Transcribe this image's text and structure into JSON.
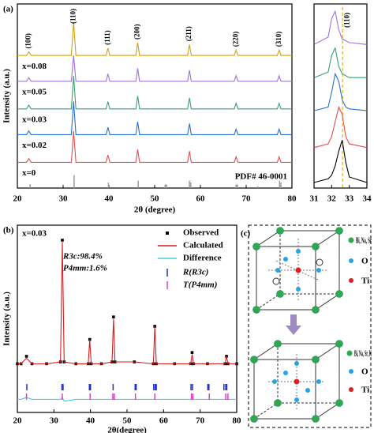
{
  "chart_data": [
    {
      "type": "line",
      "panel_label": "(a)",
      "xlabel": "2θ (degree)",
      "ylabel": "Intensity (a.u.)",
      "xlim": [
        20,
        80
      ],
      "ylim": [
        0,
        100
      ],
      "xticks": [
        20,
        30,
        40,
        50,
        60,
        70,
        80
      ],
      "x": [
        20,
        22,
        22.5,
        23,
        31.8,
        32.3,
        32.8,
        39.4,
        39.8,
        40.2,
        45.9,
        46.3,
        46.7,
        57.2,
        57.6,
        58.0,
        67.4,
        67.8,
        68.2,
        76.8,
        77.2,
        77.6,
        80
      ],
      "series": [
        {
          "name": "x=0",
          "color": "#e05050",
          "values": [
            14,
            14,
            16,
            14,
            14,
            31,
            14,
            14,
            18,
            14,
            14,
            21,
            14,
            14,
            20,
            14,
            14,
            17,
            14,
            14,
            17,
            14,
            14
          ]
        },
        {
          "name": "x=0.02",
          "color": "#2a6fd0",
          "values": [
            29,
            29,
            31,
            29,
            29,
            47,
            29,
            29,
            33,
            29,
            29,
            36,
            29,
            29,
            35,
            29,
            29,
            32,
            29,
            29,
            32,
            29,
            29
          ]
        },
        {
          "name": "x=0.03",
          "color": "#3aa070",
          "values": [
            43,
            43,
            45,
            43,
            43,
            61,
            43,
            43,
            47,
            43,
            43,
            50,
            43,
            43,
            49,
            43,
            43,
            46,
            43,
            43,
            46,
            43,
            43
          ]
        },
        {
          "name": "x=0.05",
          "color": "#a070e0",
          "values": [
            58,
            58,
            60,
            58,
            58,
            72,
            58,
            58,
            62,
            58,
            58,
            65,
            58,
            58,
            64,
            58,
            58,
            61,
            58,
            58,
            61,
            58,
            58
          ]
        },
        {
          "name": "x=0.08",
          "color": "#d4a017",
          "values": [
            72,
            72,
            74,
            72,
            72,
            90,
            72,
            72,
            76,
            72,
            72,
            79,
            72,
            72,
            78,
            72,
            72,
            75,
            72,
            72,
            75,
            72,
            72
          ]
        }
      ],
      "reference": {
        "name": "PDF# 46-0001",
        "color": "#999999",
        "x": [
          22.8,
          32.4,
          39.9,
          46.4,
          52.3,
          52.6,
          57.6,
          57.9,
          67.8,
          68.1,
          72.5,
          77.3,
          77.6
        ],
        "values": [
          2,
          7,
          3,
          4,
          2,
          2,
          4,
          3,
          2,
          2,
          1,
          4,
          3
        ]
      },
      "peak_labels": [
        {
          "text": "(100)",
          "x": 22.5
        },
        {
          "text": "(110)",
          "x": 32.3
        },
        {
          "text": "(111)",
          "x": 39.8
        },
        {
          "text": "(200)",
          "x": 46.3
        },
        {
          "text": "(211)",
          "x": 57.6
        },
        {
          "text": "(220)",
          "x": 67.8
        },
        {
          "text": "(310)",
          "x": 77.2
        }
      ]
    },
    {
      "type": "line",
      "xlim": [
        31,
        34
      ],
      "ylim": [
        0,
        100
      ],
      "xticks": [
        31,
        32,
        33,
        34
      ],
      "x": [
        31,
        31.8,
        32.0,
        32.2,
        32.4,
        32.6,
        32.8,
        33.0,
        34
      ],
      "series": [
        {
          "color": "#000000",
          "values": [
            3,
            5,
            7,
            12,
            20,
            26,
            14,
            6,
            3
          ]
        },
        {
          "color": "#e05050",
          "values": [
            22,
            24,
            28,
            36,
            44,
            40,
            28,
            24,
            22
          ]
        },
        {
          "color": "#2a6fd0",
          "values": [
            42,
            44,
            52,
            62,
            58,
            48,
            44,
            43,
            42
          ]
        },
        {
          "color": "#3aa070",
          "values": [
            60,
            63,
            72,
            76,
            66,
            62,
            61,
            60,
            60
          ]
        },
        {
          "color": "#a070e0",
          "values": [
            78,
            82,
            92,
            96,
            86,
            81,
            80,
            79,
            78
          ]
        }
      ],
      "marker_x": 32.62,
      "marker_color": "#e0b020",
      "annotation": {
        "text": "(110)",
        "x": 32.9
      }
    },
    {
      "type": "line",
      "panel_label": "(b)",
      "xlabel": "2θ(degree)",
      "ylabel": "Intensity (a.u.)",
      "xlim": [
        20,
        80
      ],
      "ylim": [
        0,
        100
      ],
      "xticks": [
        20,
        30,
        40,
        50,
        60,
        70,
        80
      ],
      "x": [
        20,
        21,
        22.5,
        24,
        28,
        31.8,
        32.3,
        32.8,
        36,
        39.4,
        39.8,
        40.2,
        43,
        45.9,
        46.3,
        46.7,
        52,
        57.2,
        57.6,
        58.0,
        63,
        67.4,
        67.8,
        68.2,
        72,
        76.8,
        77.2,
        77.6,
        80
      ],
      "series": [
        {
          "name": "Observed",
          "color": "#000000",
          "style": "points",
          "values": [
            26,
            26,
            30,
            26,
            26,
            27,
            92,
            27,
            26,
            26,
            39,
            26,
            26,
            27,
            51,
            27,
            27,
            26,
            46,
            26,
            26,
            26,
            32,
            26,
            26,
            26,
            30,
            26,
            26
          ]
        },
        {
          "name": "Calculated",
          "color": "#d02020",
          "style": "line",
          "values": [
            26,
            26,
            29,
            26,
            26,
            27,
            91,
            27,
            26,
            26,
            39,
            26,
            26,
            27,
            50,
            27,
            27,
            26,
            46,
            26,
            26,
            26,
            31,
            26,
            26,
            26,
            30,
            26,
            26
          ]
        },
        {
          "name": "Difference",
          "color": "#40d0e0",
          "style": "line",
          "values": [
            7,
            7,
            8,
            7,
            7,
            7,
            8,
            6,
            7,
            7,
            7,
            7,
            7,
            7,
            8,
            7,
            7,
            7,
            7,
            7,
            7,
            7,
            8,
            7,
            7,
            7,
            7,
            7,
            7
          ]
        }
      ],
      "bragg": [
        {
          "name": "R(R3c)",
          "color": "#2030c0",
          "x": [
            22.6,
            32.2,
            32.5,
            39.7,
            40.0,
            46.2,
            52.2,
            52.5,
            57.3,
            57.7,
            58.0,
            67.5,
            67.9,
            72.1,
            72.4,
            76.5,
            77.0,
            77.3
          ]
        },
        {
          "name": "T(P4mm)",
          "color": "#e040c0",
          "x": [
            22.5,
            32.3,
            39.9,
            46.1,
            46.5,
            52.3,
            57.6,
            67.6,
            68.0,
            72.5,
            77.0,
            77.6
          ]
        }
      ],
      "annotations": [
        "x=0.03",
        "R3c:98.4%",
        "P4mm:1.6%"
      ]
    }
  ],
  "diagram": {
    "panel_label": "(c)",
    "top_legend": [
      "Bi, Na, Sr",
      "O",
      "Ti"
    ],
    "bottom_legend": [
      "Bi, Na, Sr, K",
      "O",
      "Ti"
    ]
  }
}
